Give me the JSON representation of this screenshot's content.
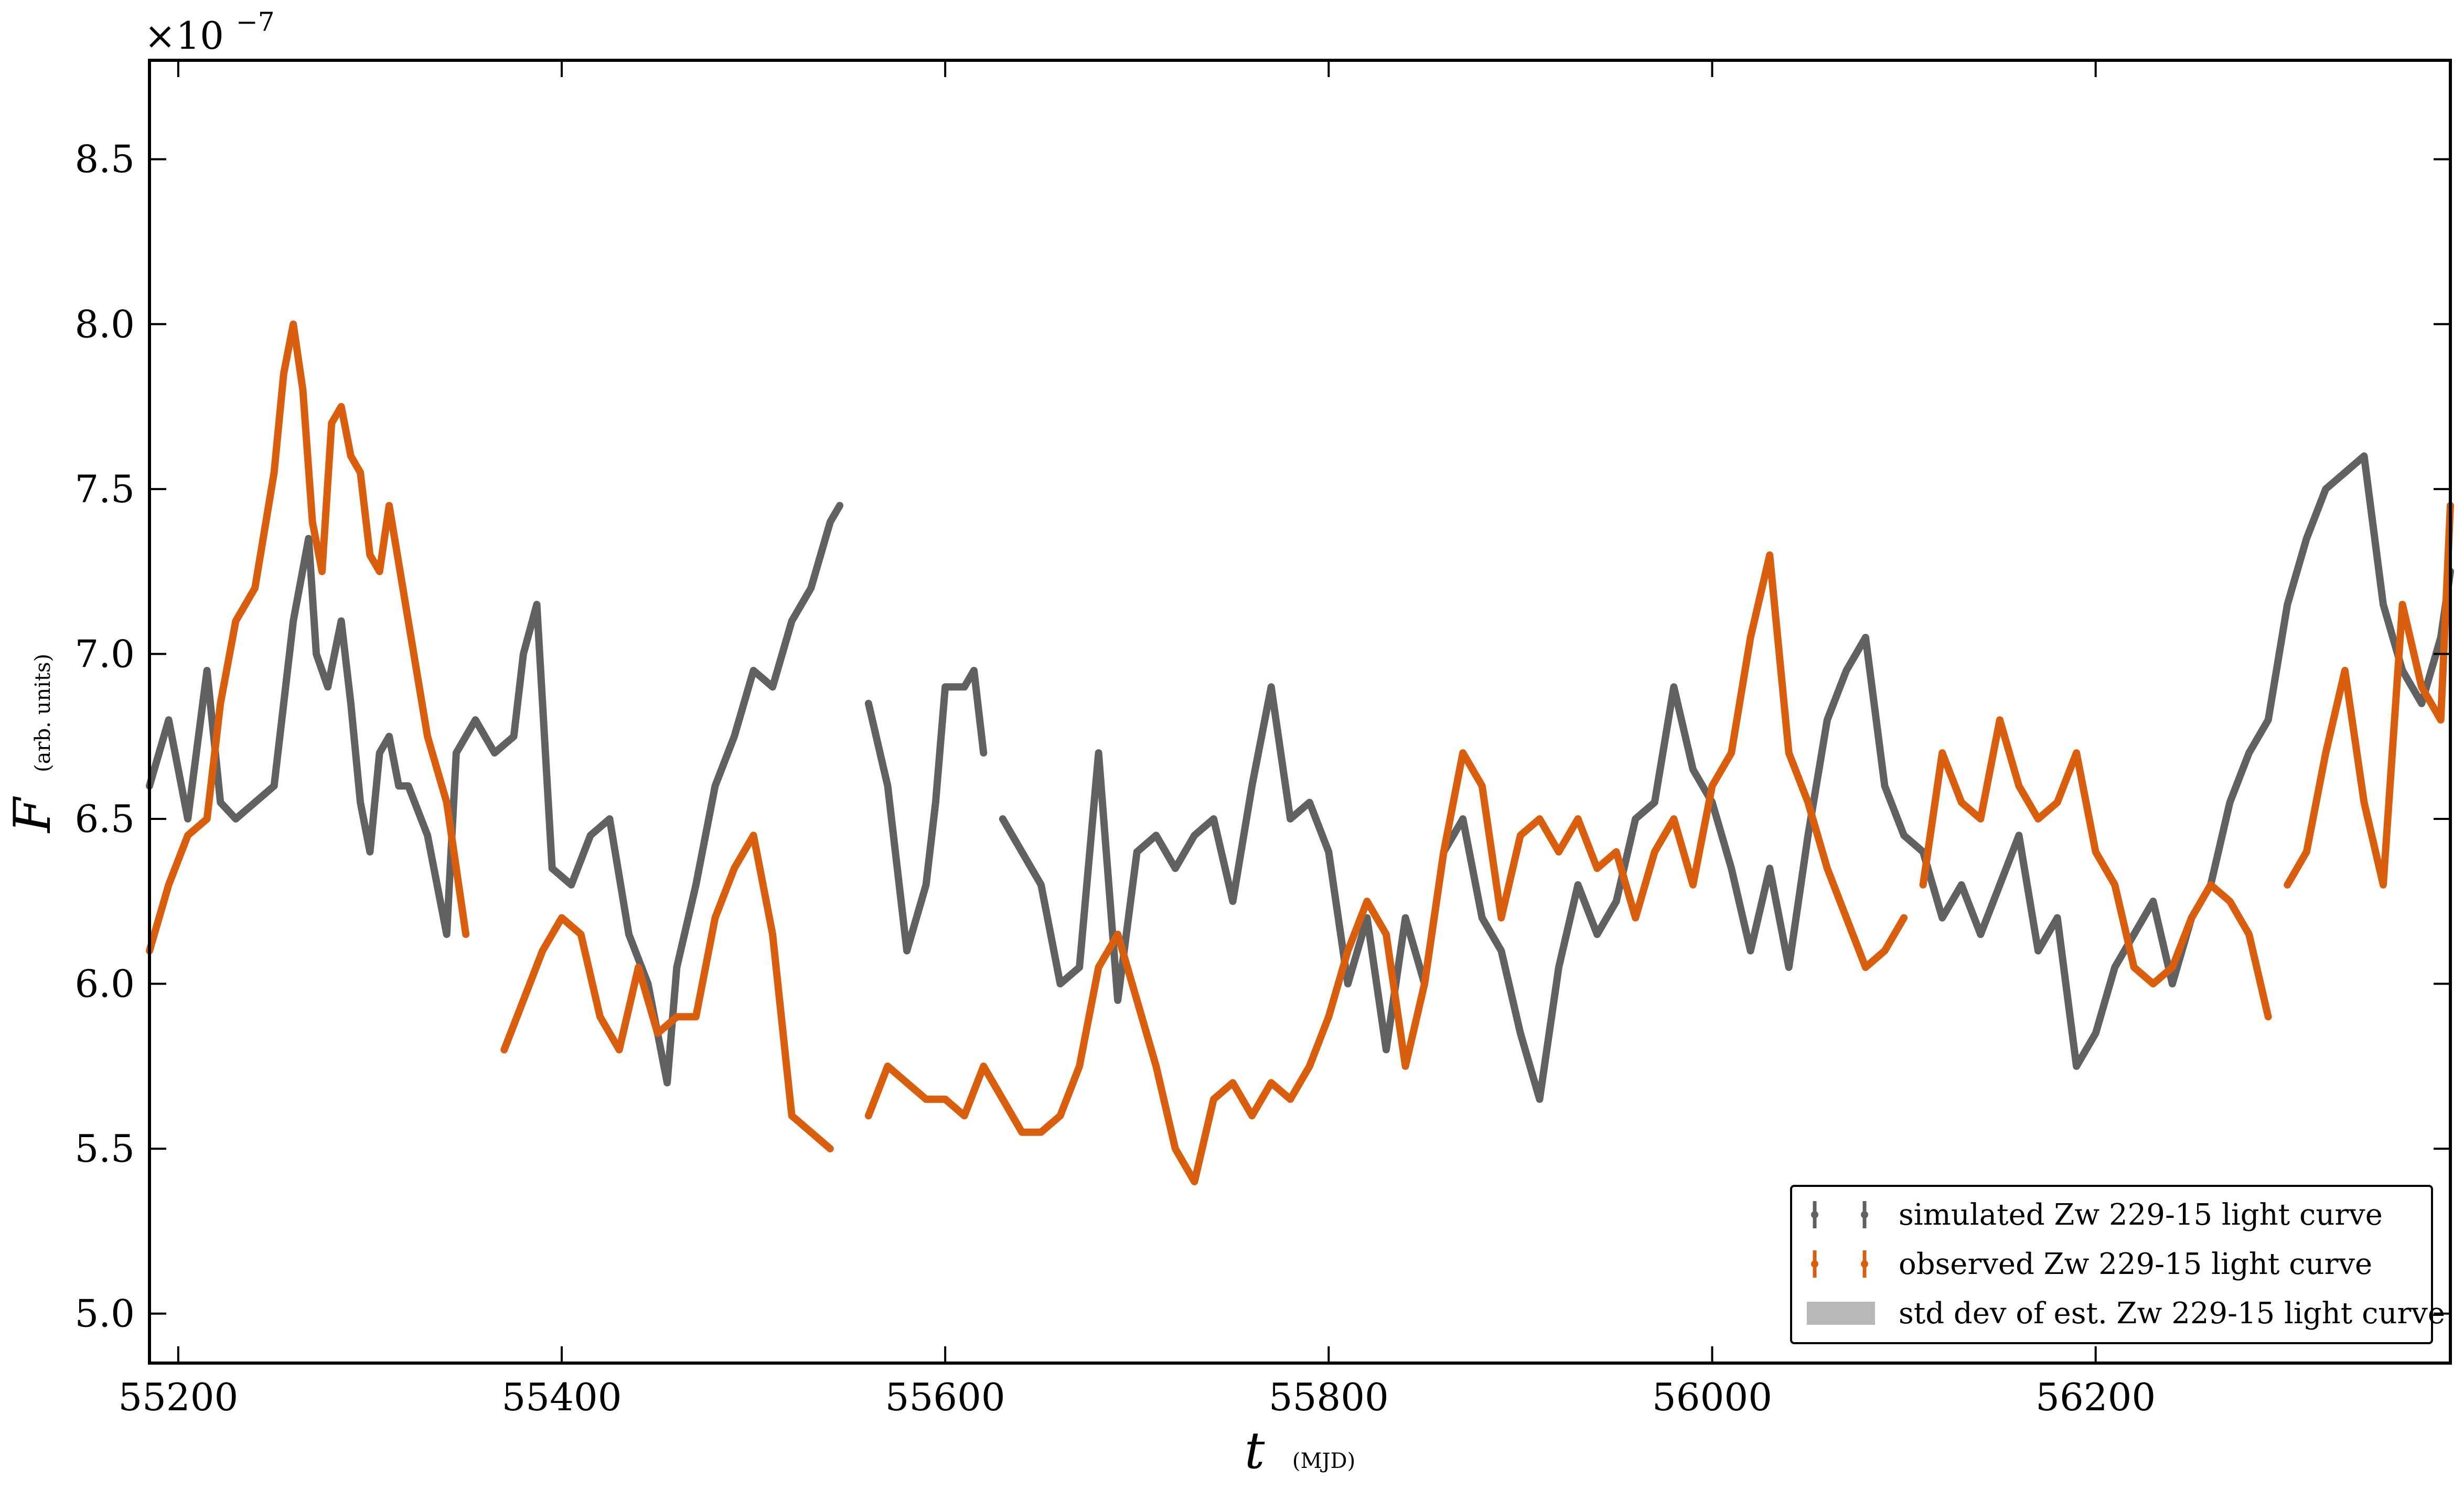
{
  "chart_data": {
    "type": "line",
    "xlabel": "t",
    "xlabel_unit": "(MJD)",
    "ylabel": "F",
    "ylabel_unit": "(arb. units)",
    "y_offset_base": "×10",
    "y_offset_exp": "−7",
    "xlim": [
      55185,
      56385
    ],
    "ylim": [
      4.85,
      8.8
    ],
    "x_ticks": [
      55200,
      55400,
      55600,
      55800,
      56000,
      56200
    ],
    "y_ticks": [
      5.0,
      5.5,
      6.0,
      6.5,
      7.0,
      7.5,
      8.0,
      8.5
    ],
    "y_tick_labels": [
      "5.0",
      "5.5",
      "6.0",
      "6.5",
      "7.0",
      "7.5",
      "8.0",
      "8.5"
    ],
    "grid": false,
    "legend_position": "lower-right",
    "legend": [
      {
        "label": "simulated Zw 229-15 light curve",
        "color": "#616161",
        "kind": "errorbar"
      },
      {
        "label": "observed Zw 229-15 light curve",
        "color": "#d95f0e",
        "kind": "errorbar"
      },
      {
        "label": "std dev of est. Zw 229-15 light curve",
        "color": "#b8b8b8",
        "kind": "patch"
      }
    ],
    "series": [
      {
        "name": "simulated Zw 229-15 light curve",
        "color": "#616161",
        "segments": [
          {
            "x": [
              55185,
              55195,
              55205,
              55215,
              55222,
              55230,
              55240,
              55250,
              55260,
              55268,
              55272,
              55278,
              55285,
              55290,
              55295,
              55300,
              55305,
              55310,
              55315,
              55320,
              55330,
              55340,
              55345,
              55355,
              55365,
              55375,
              55380,
              55387,
              55395,
              55405,
              55415,
              55425,
              55435,
              55445,
              55455,
              55460,
              55470,
              55480,
              55490,
              55500,
              55510,
              55520,
              55530,
              55540,
              55545
            ],
            "y": [
              6.6,
              6.8,
              6.5,
              6.95,
              6.55,
              6.5,
              6.55,
              6.6,
              7.1,
              7.35,
              7.0,
              6.9,
              7.1,
              6.85,
              6.55,
              6.4,
              6.7,
              6.75,
              6.6,
              6.6,
              6.45,
              6.15,
              6.7,
              6.8,
              6.7,
              6.75,
              7.0,
              7.15,
              6.35,
              6.3,
              6.45,
              6.5,
              6.15,
              6.0,
              5.7,
              6.05,
              6.3,
              6.6,
              6.75,
              6.95,
              6.9,
              7.1,
              7.2,
              7.4,
              7.45
            ]
          },
          {
            "x": [
              55560,
              55570,
              55580,
              55590,
              55595,
              55600,
              55610,
              55615,
              55620
            ],
            "y": [
              6.85,
              6.6,
              6.1,
              6.3,
              6.55,
              6.9,
              6.9,
              6.95,
              6.7
            ]
          },
          {
            "x": [
              55630,
              55640,
              55650,
              55660,
              55670,
              55680,
              55690,
              55700,
              55710,
              55720,
              55730,
              55740,
              55750,
              55760,
              55770,
              55780,
              55790,
              55800,
              55810,
              55820,
              55830,
              55840,
              55850,
              55860,
              55870,
              55880,
              55890,
              55900,
              55910,
              55920,
              55930,
              55940,
              55950,
              55960,
              55970,
              55980,
              55990,
              56000,
              56010,
              56020,
              56030,
              56040,
              56050,
              56060,
              56070,
              56080,
              56090,
              56100,
              56110
            ],
            "y": [
              6.5,
              6.4,
              6.3,
              6.0,
              6.05,
              6.7,
              5.95,
              6.4,
              6.45,
              6.35,
              6.45,
              6.5,
              6.25,
              6.6,
              6.9,
              6.5,
              6.55,
              6.4,
              6.0,
              6.2,
              5.8,
              6.2,
              6.0,
              6.4,
              6.5,
              6.2,
              6.1,
              5.85,
              5.65,
              6.05,
              6.3,
              6.15,
              6.25,
              6.5,
              6.55,
              6.9,
              6.65,
              6.55,
              6.35,
              6.1,
              6.35,
              6.05,
              6.45,
              6.8,
              6.95,
              7.05,
              6.6,
              6.45,
              6.4
            ]
          },
          {
            "x": [
              56110,
              56120,
              56130,
              56140,
              56150,
              56160,
              56170,
              56180,
              56190,
              56200,
              56210,
              56220,
              56230,
              56240,
              56250,
              56260,
              56270,
              56280,
              56290,
              56300,
              56310,
              56320,
              56330,
              56340,
              56350,
              56360,
              56370,
              56380,
              56385
            ],
            "y": [
              6.4,
              6.2,
              6.3,
              6.15,
              6.3,
              6.45,
              6.1,
              6.2,
              5.75,
              5.85,
              6.05,
              6.15,
              6.25,
              6.0,
              6.2,
              6.3,
              6.55,
              6.7,
              6.8,
              7.15,
              7.35,
              7.5,
              7.55,
              7.6,
              7.15,
              6.95,
              6.85,
              7.05,
              7.25
            ]
          }
        ]
      },
      {
        "name": "observed Zw 229-15 light curve",
        "color": "#d95f0e",
        "segments": [
          {
            "x": [
              55185,
              55195,
              55205,
              55215,
              55222,
              55230,
              55240,
              55250,
              55255,
              55260,
              55265,
              55270,
              55275,
              55280,
              55285,
              55290,
              55295,
              55300,
              55305,
              55310,
              55320,
              55330,
              55340,
              55350
            ],
            "y": [
              6.1,
              6.3,
              6.45,
              6.5,
              6.85,
              7.1,
              7.2,
              7.55,
              7.85,
              8.0,
              7.8,
              7.4,
              7.25,
              7.7,
              7.75,
              7.6,
              7.55,
              7.3,
              7.25,
              7.45,
              7.1,
              6.75,
              6.55,
              6.15
            ]
          },
          {
            "x": [
              55370,
              55380,
              55390,
              55400,
              55410,
              55420,
              55430,
              55440,
              55450,
              55460,
              55470,
              55480,
              55490,
              55500,
              55510,
              55520,
              55530,
              55540
            ],
            "y": [
              5.8,
              5.95,
              6.1,
              6.2,
              6.15,
              5.9,
              5.8,
              6.05,
              5.85,
              5.9,
              5.9,
              6.2,
              6.35,
              6.45,
              6.15,
              5.6,
              5.55,
              5.5
            ]
          },
          {
            "x": [
              55560,
              55570,
              55580,
              55590,
              55600,
              55610,
              55620,
              55630,
              55640,
              55650,
              55660,
              55670,
              55680,
              55690,
              55700,
              55710,
              55720,
              55730,
              55740,
              55750,
              55760,
              55770,
              55780,
              55790,
              55800
            ],
            "y": [
              5.6,
              5.75,
              5.7,
              5.65,
              5.65,
              5.6,
              5.75,
              5.65,
              5.55,
              5.55,
              5.6,
              5.75,
              6.05,
              6.15,
              5.95,
              5.75,
              5.5,
              5.4,
              5.65,
              5.7,
              5.6,
              5.7,
              5.65,
              5.75,
              5.9
            ]
          },
          {
            "x": [
              55800,
              55810,
              55820,
              55830,
              55840,
              55850,
              55860,
              55870,
              55880,
              55890,
              55900,
              55910,
              55920,
              55930,
              55940,
              55950,
              55960,
              55970,
              55980,
              55990,
              56000,
              56010,
              56020,
              56030,
              56040,
              56050,
              56060,
              56070,
              56080,
              56090,
              56100
            ],
            "y": [
              5.9,
              6.1,
              6.25,
              6.15,
              5.75,
              6.0,
              6.4,
              6.7,
              6.6,
              6.2,
              6.45,
              6.5,
              6.4,
              6.5,
              6.35,
              6.4,
              6.2,
              6.4,
              6.5,
              6.3,
              6.6,
              6.7,
              7.05,
              7.3,
              6.7,
              6.55,
              6.35,
              6.2,
              6.05,
              6.1,
              6.2
            ]
          },
          {
            "x": [
              56110,
              56120,
              56130,
              56140,
              56150,
              56160,
              56170,
              56180,
              56190,
              56200,
              56210,
              56220,
              56230,
              56240,
              56250,
              56260
            ],
            "y": [
              6.3,
              6.7,
              6.55,
              6.5,
              6.8,
              6.6,
              6.5,
              6.55,
              6.7,
              6.4,
              6.3,
              6.05,
              6.0,
              6.05,
              6.2,
              6.3
            ]
          },
          {
            "x": [
              56260,
              56270,
              56280,
              56290
            ],
            "y": [
              6.3,
              6.25,
              6.15,
              5.9
            ]
          },
          {
            "x": [
              56300,
              56310,
              56320,
              56330,
              56340,
              56350,
              56360,
              56370,
              56380,
              56385
            ],
            "y": [
              6.3,
              6.4,
              6.7,
              6.95,
              6.55,
              6.3,
              7.15,
              6.9,
              6.8,
              7.45
            ]
          }
        ]
      }
    ]
  }
}
